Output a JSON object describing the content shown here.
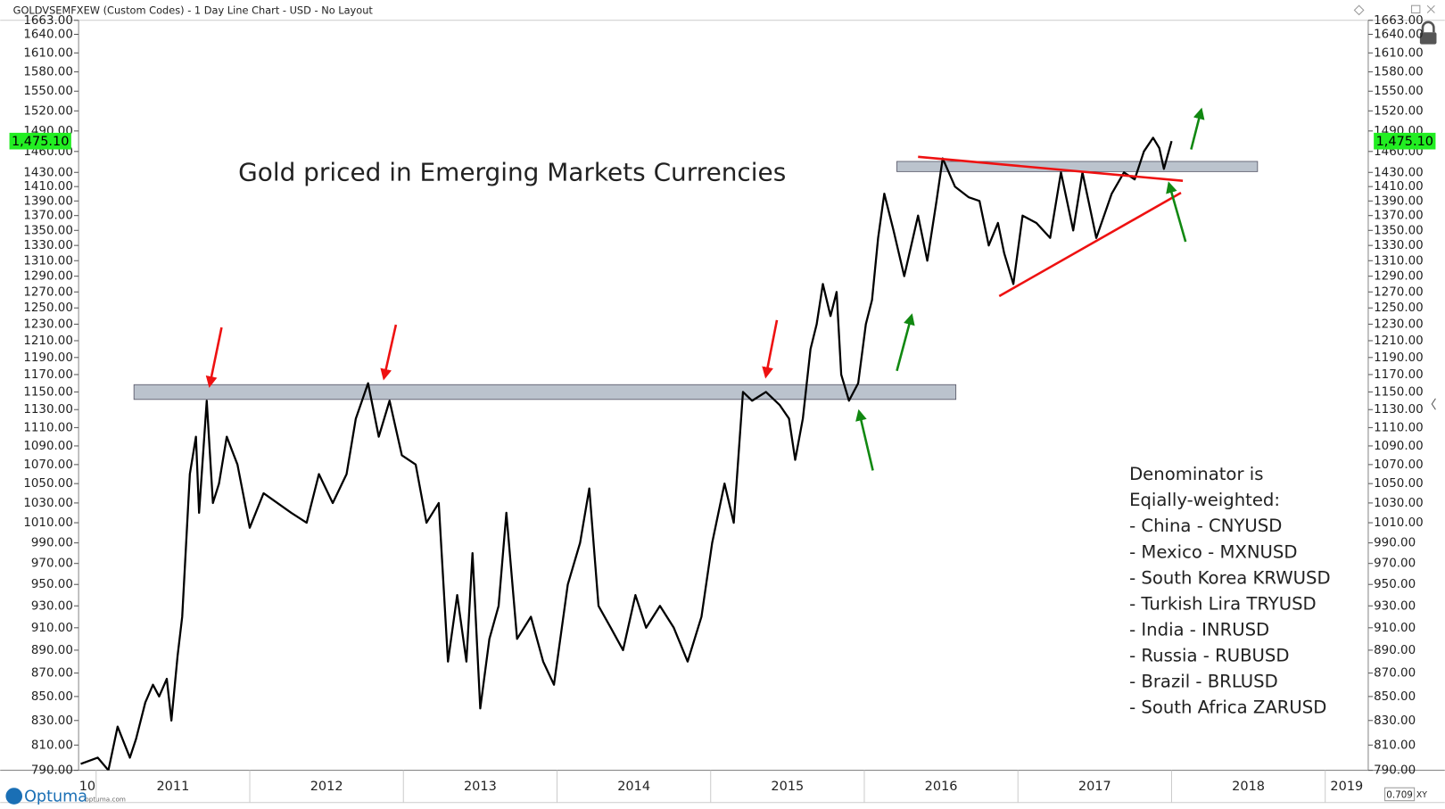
{
  "header": "GOLDVSEMFXEW (Custom Codes) - 1 Day Line Chart - USD - No Layout",
  "footer": {
    "logo": "Optuma",
    "site": "optuma.com",
    "scale": "0.709",
    "mode": "XY"
  },
  "chart_data": {
    "type": "line",
    "title": "Gold priced in Emerging Markets Currencies",
    "notes": [
      "Denominator is",
      "Eqially-weighted:",
      "- China - CNYUSD",
      "- Mexico - MXNUSD",
      "- South Korea KRWUSD",
      "- Turkish Lira TRYUSD",
      "- India - INRUSD",
      "- Russia - RUBUSD",
      "- Brazil - BRLUSD",
      "- South Africa ZARUSD"
    ],
    "color": "#000000",
    "log_scale": true,
    "x": [
      2010.9,
      2011.01,
      2011.08,
      2011.14,
      2011.22,
      2011.26,
      2011.32,
      2011.37,
      2011.41,
      2011.46,
      2011.49,
      2011.53,
      2011.56,
      2011.61,
      2011.65,
      2011.67,
      2011.72,
      2011.76,
      2011.8,
      2011.85,
      2011.92,
      2012.0,
      2012.09,
      2012.18,
      2012.27,
      2012.37,
      2012.45,
      2012.54,
      2012.63,
      2012.69,
      2012.77,
      2012.84,
      2012.91,
      2012.99,
      2013.08,
      2013.15,
      2013.23,
      2013.29,
      2013.35,
      2013.41,
      2013.45,
      2013.5,
      2013.56,
      2013.62,
      2013.67,
      2013.74,
      2013.83,
      2013.91,
      2013.98,
      2014.07,
      2014.15,
      2014.21,
      2014.27,
      2014.35,
      2014.43,
      2014.51,
      2014.58,
      2014.67,
      2014.76,
      2014.85,
      2014.94,
      2015.01,
      2015.09,
      2015.15,
      2015.21,
      2015.27,
      2015.36,
      2015.45,
      2015.51,
      2015.55,
      2015.6,
      2015.65,
      2015.69,
      2015.73,
      2015.78,
      2015.82,
      2015.85,
      2015.9,
      2015.96,
      2016.01,
      2016.05,
      2016.09,
      2016.13,
      2016.19,
      2016.26,
      2016.35,
      2016.41,
      2016.47,
      2016.51,
      2016.59,
      2016.68,
      2016.75,
      2016.81,
      2016.87,
      2016.91,
      2016.97,
      2017.03,
      2017.12,
      2017.21,
      2017.28,
      2017.36,
      2017.42,
      2017.51,
      2017.61,
      2017.69,
      2017.76,
      2017.82,
      2017.88,
      2017.92,
      2017.95,
      2018.0
    ],
    "values": [
      795,
      800,
      790,
      825,
      800,
      815,
      845,
      860,
      850,
      865,
      830,
      885,
      920,
      1060,
      1100,
      1020,
      1140,
      1030,
      1050,
      1100,
      1070,
      1005,
      1040,
      1030,
      1020,
      1010,
      1060,
      1030,
      1060,
      1120,
      1160,
      1100,
      1140,
      1080,
      1070,
      1010,
      1030,
      880,
      940,
      880,
      980,
      840,
      900,
      930,
      1020,
      900,
      920,
      880,
      860,
      950,
      990,
      1045,
      930,
      910,
      890,
      940,
      910,
      930,
      910,
      880,
      920,
      990,
      1050,
      1010,
      1150,
      1140,
      1150,
      1135,
      1120,
      1075,
      1120,
      1200,
      1230,
      1280,
      1240,
      1270,
      1170,
      1140,
      1160,
      1230,
      1260,
      1340,
      1400,
      1350,
      1290,
      1370,
      1310,
      1390,
      1450,
      1410,
      1395,
      1390,
      1330,
      1360,
      1320,
      1280,
      1370,
      1360,
      1340,
      1430,
      1350,
      1430,
      1340,
      1400,
      1430,
      1420,
      1460,
      1480,
      1465,
      1435,
      1475
    ],
    "last_value": 1475.1,
    "last_value_label": "1,475.10",
    "last_value_color": "#22ee22",
    "xlim": [
      2010.886,
      2019.28
    ],
    "xticks": [
      {
        "value": 2010,
        "label": "10"
      },
      2011,
      2012,
      2013,
      2014,
      2015,
      2016,
      2017,
      2018,
      2019
    ],
    "ylim": [
      790,
      1663
    ],
    "yticks": [
      {
        "value": 790,
        "label": "790.00"
      },
      {
        "value": 810,
        "label": "810.00"
      },
      {
        "value": 830,
        "label": "830.00"
      },
      {
        "value": 850,
        "label": "850.00"
      },
      {
        "value": 870,
        "label": "870.00"
      },
      {
        "value": 890,
        "label": "890.00"
      },
      {
        "value": 910,
        "label": "910.00"
      },
      {
        "value": 930,
        "label": "930.00"
      },
      {
        "value": 950,
        "label": "950.00"
      },
      {
        "value": 970,
        "label": "970.00"
      },
      {
        "value": 990,
        "label": "990.00"
      },
      {
        "value": 1010,
        "label": "1010.00"
      },
      {
        "value": 1030,
        "label": "1030.00"
      },
      {
        "value": 1050,
        "label": "1050.00"
      },
      {
        "value": 1070,
        "label": "1070.00"
      },
      {
        "value": 1090,
        "label": "1090.00"
      },
      {
        "value": 1110,
        "label": "1110.00"
      },
      {
        "value": 1130,
        "label": "1130.00"
      },
      {
        "value": 1150,
        "label": "1150.00"
      },
      {
        "value": 1170,
        "label": "1170.00"
      },
      {
        "value": 1190,
        "label": "1190.00"
      },
      {
        "value": 1210,
        "label": "1210.00"
      },
      {
        "value": 1230,
        "label": "1230.00"
      },
      {
        "value": 1250,
        "label": "1250.00"
      },
      {
        "value": 1270,
        "label": "1270.00"
      },
      {
        "value": 1290,
        "label": "1290.00"
      },
      {
        "value": 1310,
        "label": "1310.00"
      },
      {
        "value": 1330,
        "label": "1330.00"
      },
      {
        "value": 1350,
        "label": "1350.00"
      },
      {
        "value": 1370,
        "label": "1370.00"
      },
      {
        "value": 1390,
        "label": "1390.00"
      },
      {
        "value": 1410,
        "label": "1410.00"
      },
      {
        "value": 1430,
        "label": "1430.00"
      },
      {
        "value": 1460,
        "label": "1460.00"
      },
      {
        "value": 1490,
        "label": "1490.00"
      },
      {
        "value": 1520,
        "label": "1520.00"
      },
      {
        "value": 1550,
        "label": "1550.00"
      },
      {
        "value": 1580,
        "label": "1580.00"
      },
      {
        "value": 1610,
        "label": "1610.00"
      },
      {
        "value": 1640,
        "label": "1640.00"
      },
      {
        "value": 1663,
        "label": "1663.00"
      }
    ]
  }
}
